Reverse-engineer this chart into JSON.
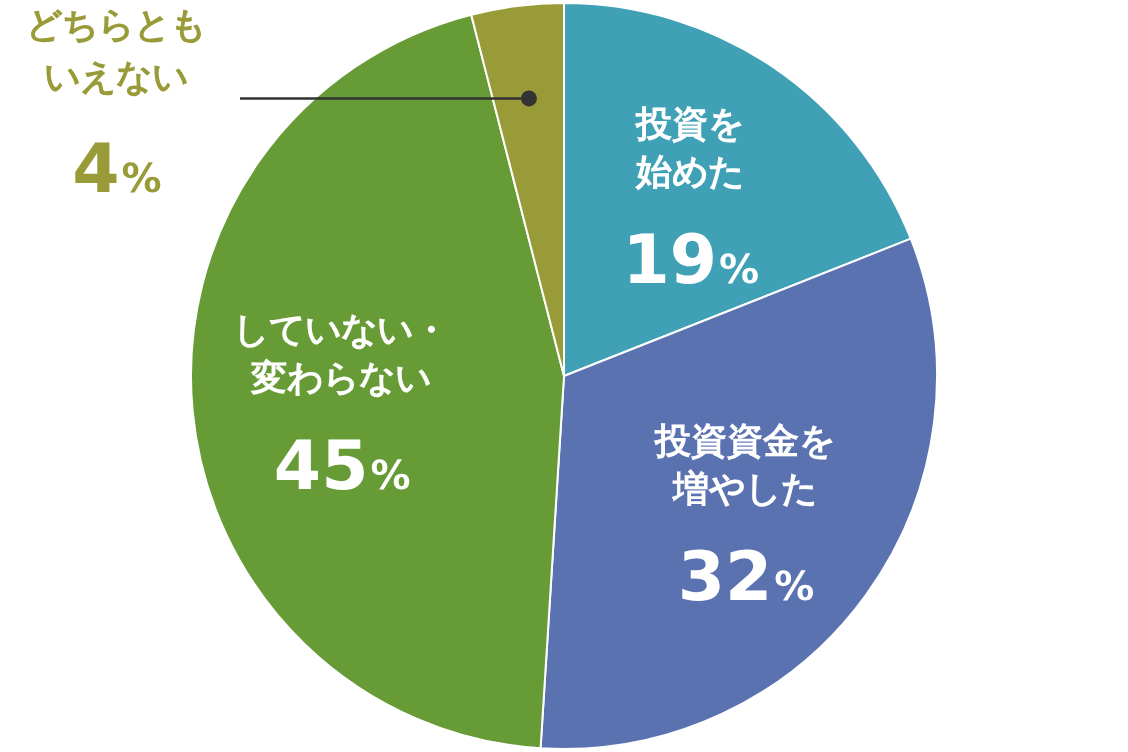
{
  "chart_data": {
    "type": "pie",
    "categories": [
      "投資を始めた",
      "投資資金を増やした",
      "していない・変わらない",
      "どちらともいえない"
    ],
    "values": [
      19,
      32,
      45,
      4
    ],
    "colors": [
      "#3fa0b6",
      "#5b72b1",
      "#679b36",
      "#989b37"
    ],
    "value_labels": [
      "19%",
      "32%",
      "45%",
      "4%"
    ],
    "legend": false
  }
}
